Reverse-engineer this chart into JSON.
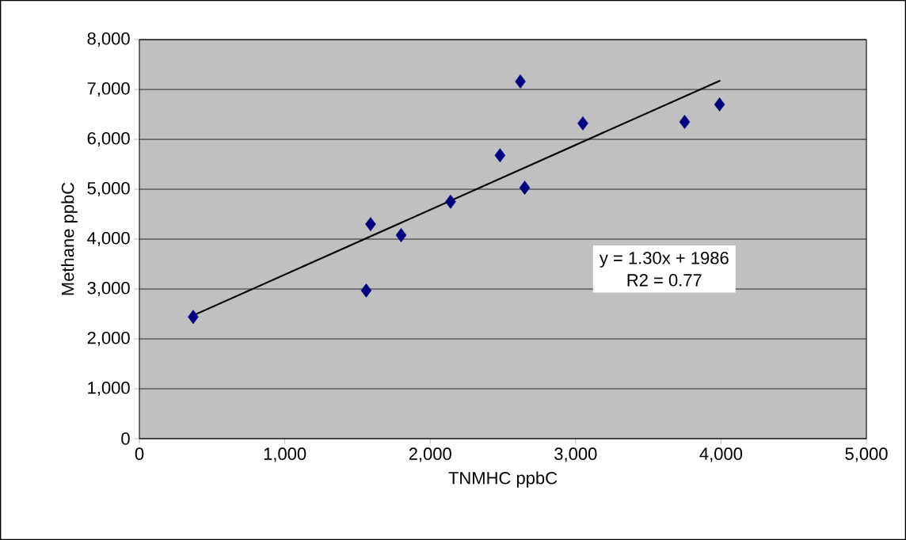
{
  "chart_data": {
    "type": "scatter",
    "xlabel": "TNMHC ppbC",
    "ylabel": "Methane ppbC",
    "xlim": [
      0,
      5000
    ],
    "ylim": [
      0,
      8000
    ],
    "xticks": [
      0,
      {
        "value": 1000,
        "label": "1,000"
      },
      {
        "value": 2000,
        "label": "2,000"
      },
      {
        "value": 3000,
        "label": "3,000"
      },
      {
        "value": 4000,
        "label": "4,000"
      },
      {
        "value": 5000,
        "label": "5,000"
      }
    ],
    "yticks": [
      0,
      {
        "value": 1000,
        "label": "1,000"
      },
      {
        "value": 2000,
        "label": "2,000"
      },
      {
        "value": 3000,
        "label": "3,000"
      },
      {
        "value": 4000,
        "label": "4,000"
      },
      {
        "value": 5000,
        "label": "5,000"
      },
      {
        "value": 6000,
        "label": "6,000"
      },
      {
        "value": 7000,
        "label": "7,000"
      },
      {
        "value": 8000,
        "label": "8,000"
      }
    ],
    "grid": "y",
    "marker": "diamond",
    "series": [
      {
        "color": "#000080",
        "x": [
          370,
          1590,
          1560,
          1800,
          2140,
          2480,
          2620,
          2650,
          3050,
          3750,
          3990
        ],
        "values": [
          2440,
          4300,
          2970,
          4080,
          4750,
          5680,
          7160,
          5030,
          6320,
          6350,
          6700
        ]
      },
      {
        "type": "line",
        "color": "#000000",
        "marker": "none",
        "x": [
          370,
          3995
        ],
        "values": [
          2470,
          7180
        ]
      }
    ],
    "annotations": [
      "y = 1.30x + 1986",
      "R2 = 0.77"
    ]
  }
}
